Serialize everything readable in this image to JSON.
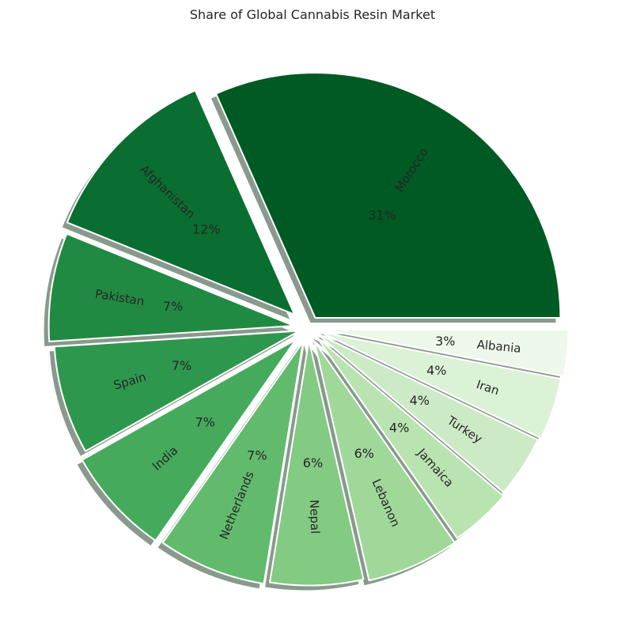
{
  "chart_data": {
    "type": "pie",
    "title": "Share of Global Cannabis Resin Market",
    "categories": [
      "Morocco",
      "Afghanistan",
      "Pakistan",
      "Spain",
      "India",
      "Netherlands",
      "Nepal",
      "Lebanon",
      "Jamaica",
      "Turkey",
      "Iran",
      "Albania"
    ],
    "values": [
      31,
      12,
      7,
      7,
      7,
      7,
      6,
      6,
      4,
      4,
      4,
      3
    ],
    "value_labels": [
      "31%",
      "12%",
      "7%",
      "7%",
      "7%",
      "7%",
      "6%",
      "6%",
      "4%",
      "4%",
      "4%",
      "3%"
    ],
    "colors": [
      "#005a23",
      "#0a6e31",
      "#218a42",
      "#2e974e",
      "#45aa5c",
      "#62bb6d",
      "#83ca83",
      "#a0d89a",
      "#b9e3b0",
      "#cdeac6",
      "#dcf2d7",
      "#eef8ea"
    ],
    "start_angle_deg": 0,
    "direction": "counterclockwise",
    "shadow": true,
    "exploded": true,
    "label_rotation": "radial"
  }
}
